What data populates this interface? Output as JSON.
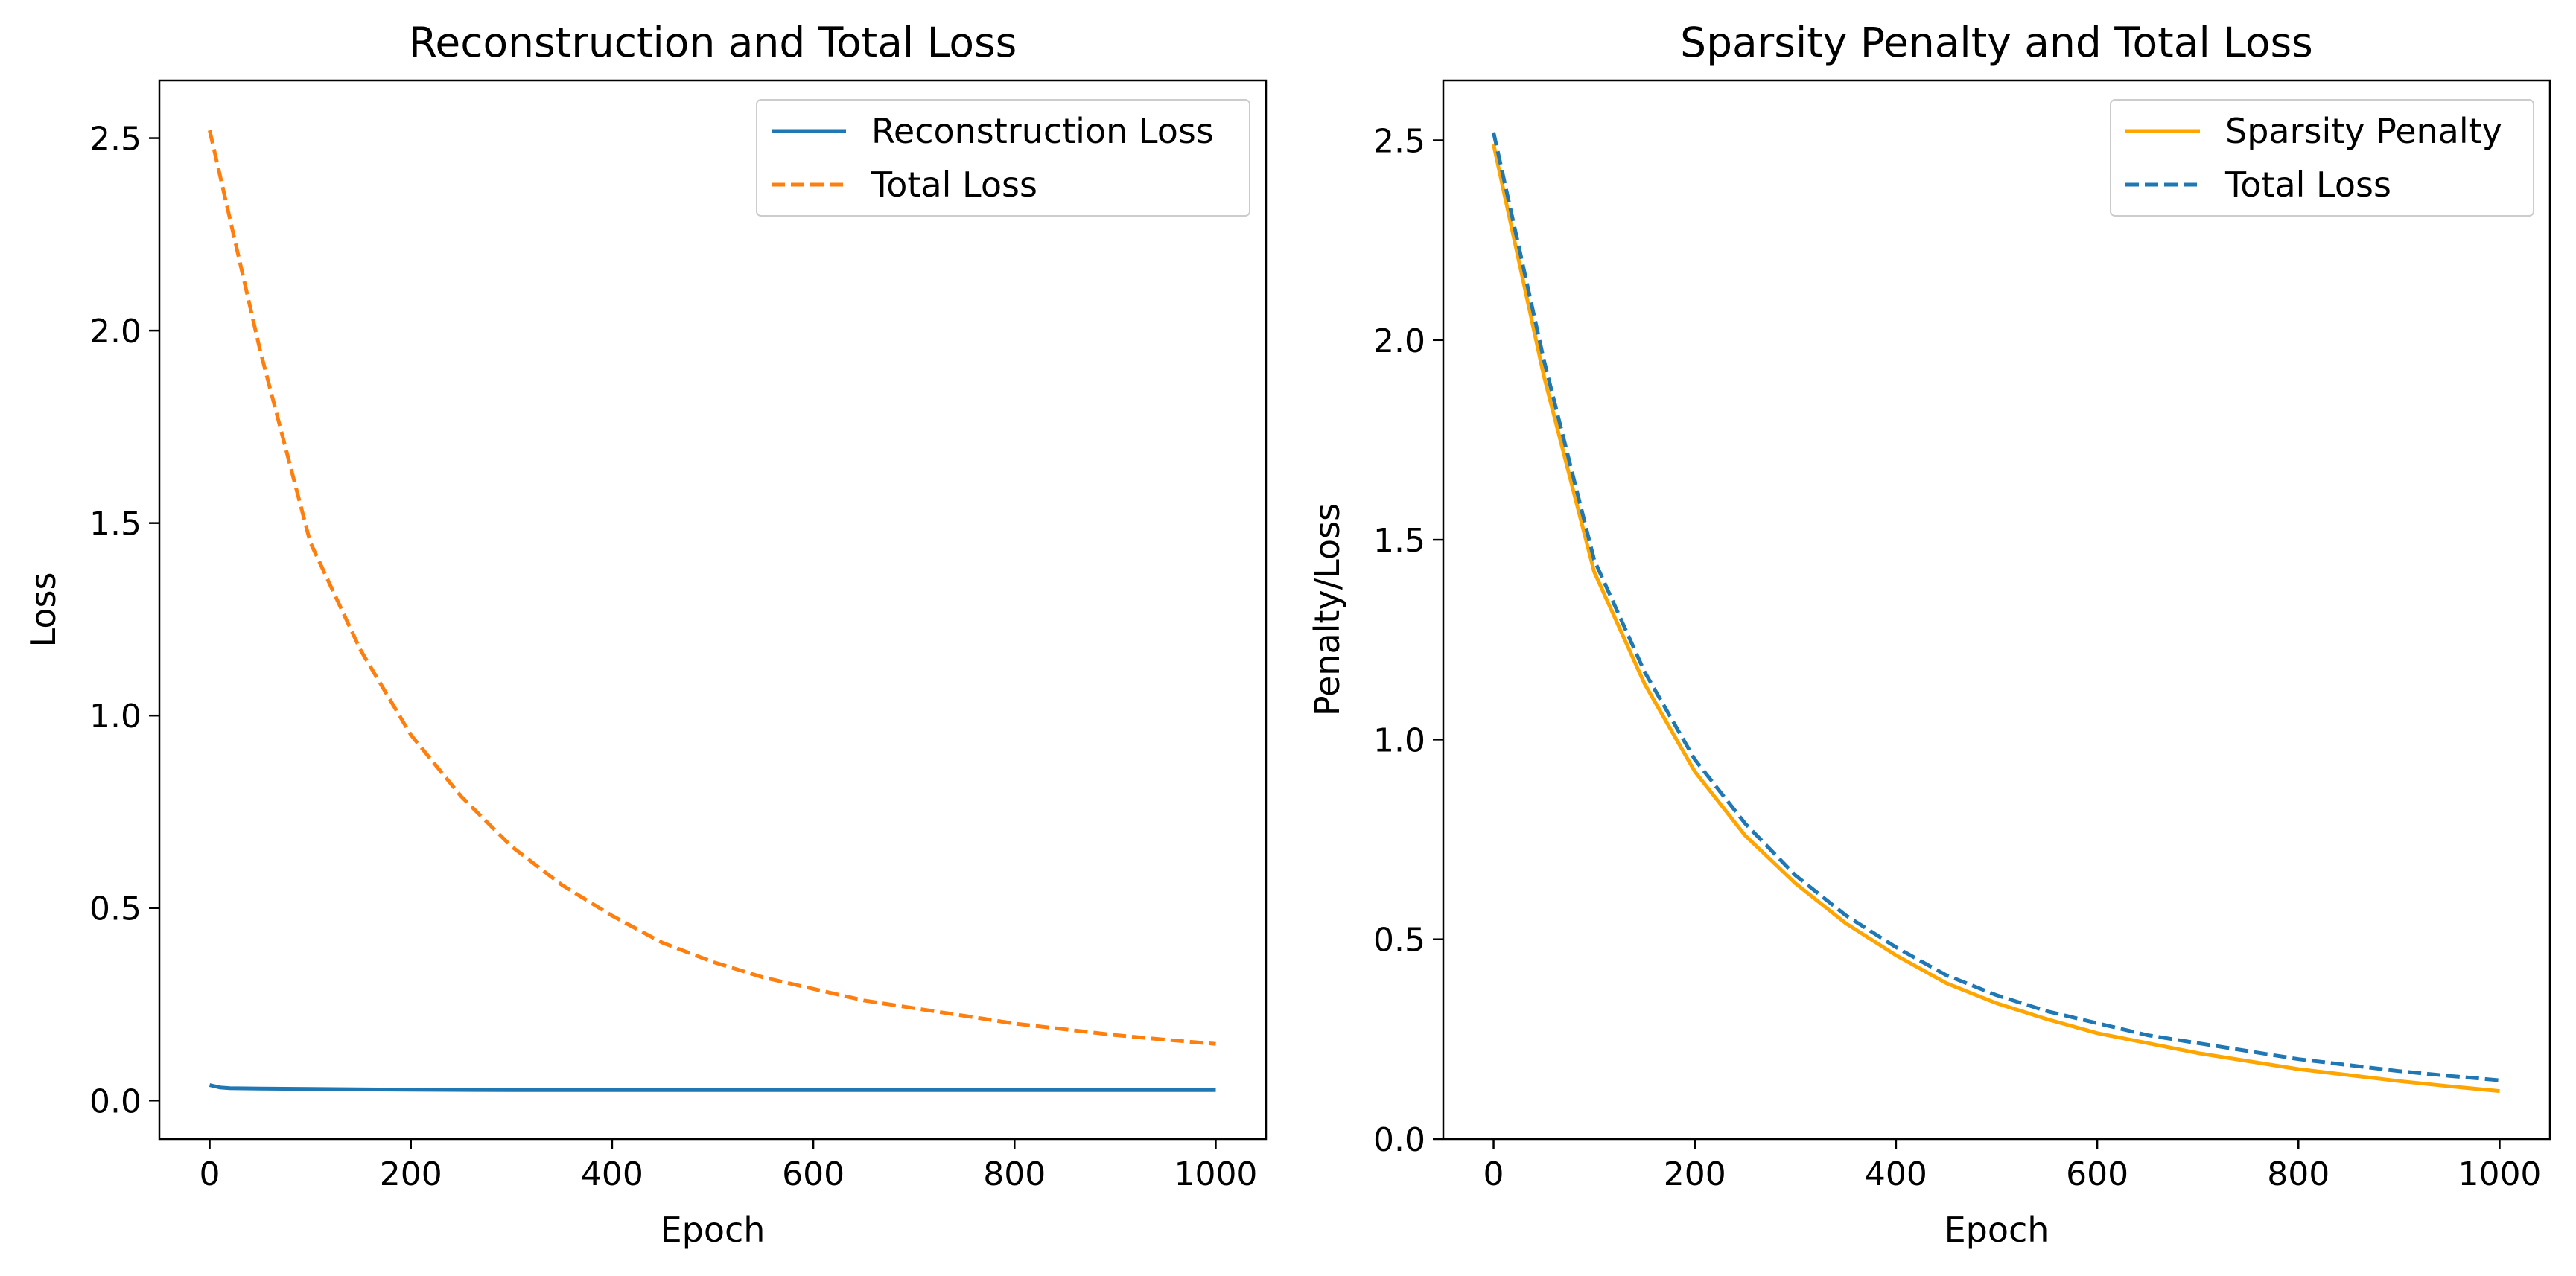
{
  "chart_data": [
    {
      "type": "line",
      "title": "Reconstruction and Total Loss",
      "xlabel": "Epoch",
      "ylabel": "Loss",
      "xlim": [
        -50,
        1050
      ],
      "ylim": [
        -0.1,
        2.65
      ],
      "xticks": [
        0,
        200,
        400,
        600,
        800,
        1000
      ],
      "xtick_labels": [
        "0",
        "200",
        "400",
        "600",
        "800",
        "1000"
      ],
      "yticks": [
        0.0,
        0.5,
        1.0,
        1.5,
        2.0,
        2.5
      ],
      "ytick_labels": [
        "0.0",
        "0.5",
        "1.0",
        "1.5",
        "2.0",
        "2.5"
      ],
      "grid": false,
      "legend_position": "top-right",
      "series": [
        {
          "name": "Reconstruction Loss",
          "color": "#1f77b4",
          "dashed": false,
          "x": [
            0,
            10,
            20,
            50,
            100,
            200,
            300,
            400,
            500,
            600,
            700,
            800,
            900,
            1000
          ],
          "y": [
            0.04,
            0.034,
            0.032,
            0.031,
            0.03,
            0.028,
            0.027,
            0.027,
            0.027,
            0.027,
            0.027,
            0.027,
            0.027,
            0.027
          ]
        },
        {
          "name": "Total Loss",
          "color": "#ff7f0e",
          "dashed": true,
          "x": [
            0,
            50,
            100,
            150,
            200,
            250,
            300,
            350,
            400,
            450,
            500,
            550,
            600,
            650,
            700,
            750,
            800,
            850,
            900,
            950,
            1000
          ],
          "y": [
            2.52,
            1.95,
            1.45,
            1.17,
            0.95,
            0.79,
            0.66,
            0.56,
            0.48,
            0.41,
            0.36,
            0.32,
            0.29,
            0.26,
            0.24,
            0.22,
            0.2,
            0.185,
            0.17,
            0.158,
            0.147
          ]
        }
      ]
    },
    {
      "type": "line",
      "title": "Sparsity Penalty and Total Loss",
      "xlabel": "Epoch",
      "ylabel": "Penalty/Loss",
      "xlim": [
        -50,
        1050
      ],
      "ylim": [
        0.0,
        2.65
      ],
      "xticks": [
        0,
        200,
        400,
        600,
        800,
        1000
      ],
      "xtick_labels": [
        "0",
        "200",
        "400",
        "600",
        "800",
        "1000"
      ],
      "yticks": [
        0.0,
        0.5,
        1.0,
        1.5,
        2.0,
        2.5
      ],
      "ytick_labels": [
        "0.0",
        "0.5",
        "1.0",
        "1.5",
        "2.0",
        "2.5"
      ],
      "grid": false,
      "legend_position": "top-right",
      "series": [
        {
          "name": "Sparsity Penalty",
          "color": "#ffa500",
          "dashed": false,
          "x": [
            0,
            50,
            100,
            150,
            200,
            250,
            300,
            350,
            400,
            450,
            500,
            550,
            600,
            650,
            700,
            750,
            800,
            850,
            900,
            950,
            1000
          ],
          "y": [
            2.49,
            1.91,
            1.42,
            1.14,
            0.92,
            0.76,
            0.64,
            0.54,
            0.46,
            0.39,
            0.34,
            0.3,
            0.265,
            0.24,
            0.215,
            0.195,
            0.175,
            0.16,
            0.145,
            0.132,
            0.12
          ]
        },
        {
          "name": "Total Loss",
          "color": "#1f77b4",
          "dashed": true,
          "x": [
            0,
            50,
            100,
            150,
            200,
            250,
            300,
            350,
            400,
            450,
            500,
            550,
            600,
            650,
            700,
            750,
            800,
            850,
            900,
            950,
            1000
          ],
          "y": [
            2.52,
            1.95,
            1.45,
            1.17,
            0.95,
            0.79,
            0.66,
            0.56,
            0.48,
            0.41,
            0.36,
            0.32,
            0.29,
            0.26,
            0.24,
            0.22,
            0.2,
            0.185,
            0.17,
            0.158,
            0.147
          ]
        }
      ]
    }
  ]
}
